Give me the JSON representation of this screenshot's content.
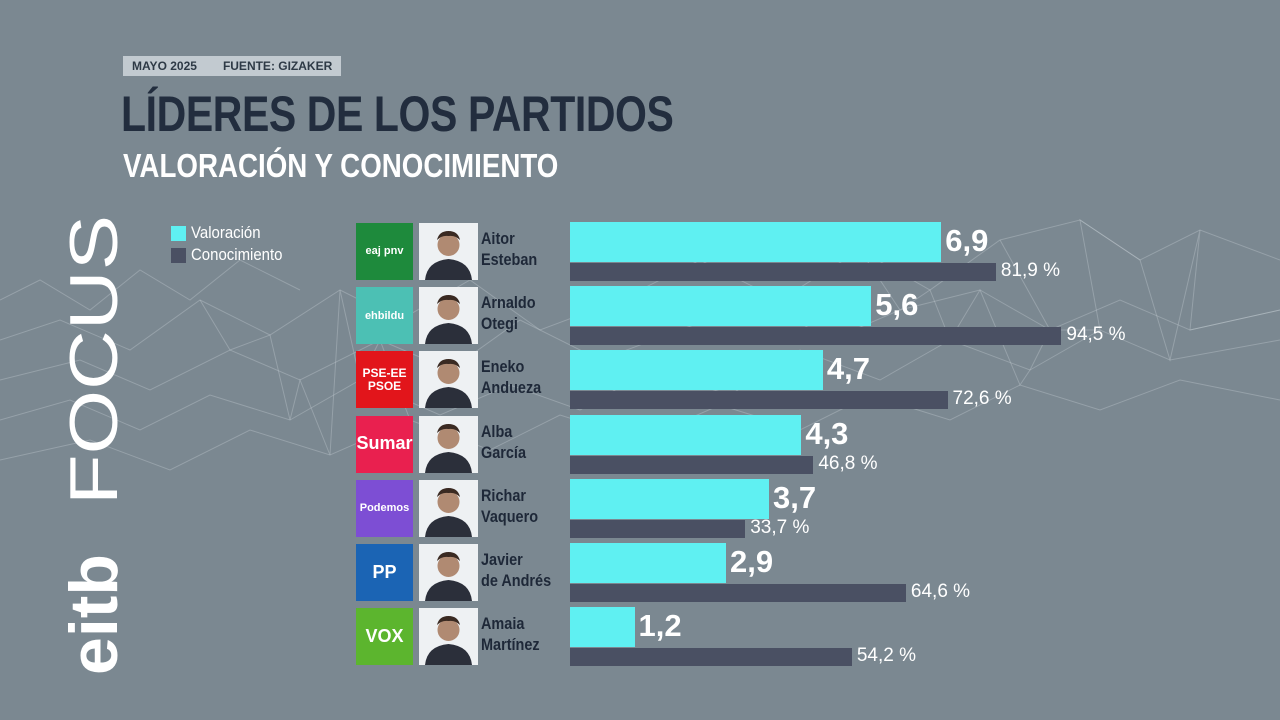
{
  "source": {
    "date": "MAYO 2025",
    "source": "FUENTE: GIZAKER"
  },
  "title": "LÍDERES DE LOS PARTIDOS",
  "subtitle": "VALORACIÓN Y CONOCIMIENTO",
  "brand": {
    "prefix": "eitb",
    "word": "FOCUS"
  },
  "colors": {
    "background": "#7b8891",
    "valoracion": "#5ff0f2",
    "conocimiento": "#4a5063",
    "title": "#222d3e"
  },
  "legend": [
    {
      "label": "Valoración",
      "color": "#5ff0f2"
    },
    {
      "label": "Conocimiento",
      "color": "#4a5063"
    }
  ],
  "leaders": [
    {
      "first": "Aitor",
      "last": "Esteban",
      "party": "eaj pnv",
      "logo_color": "#1e8a3c",
      "valoracion_label": "6,9",
      "conocimiento_label": "81,9 %"
    },
    {
      "first": "Arnaldo",
      "last": "Otegi",
      "party": "ehbildu",
      "logo_color": "#4cc0b4",
      "valoracion_label": "5,6",
      "conocimiento_label": "94,5 %"
    },
    {
      "first": "Eneko",
      "last": "Andueza",
      "party": "PSE-EE PSOE",
      "logo_color": "#e2151b",
      "valoracion_label": "4,7",
      "conocimiento_label": "72,6 %"
    },
    {
      "first": "Alba",
      "last": "García",
      "party": "Sumar",
      "logo_color": "#e9204f",
      "valoracion_label": "4,3",
      "conocimiento_label": "46,8 %"
    },
    {
      "first": "Richar",
      "last": "Vaquero",
      "party": "Podemos",
      "logo_color": "#7d4ed4",
      "valoracion_label": "3,7",
      "conocimiento_label": "33,7 %"
    },
    {
      "first": "Javier",
      "last": "de Andrés",
      "party": "PP",
      "logo_color": "#1b64b4",
      "valoracion_label": "2,9",
      "conocimiento_label": "64,6 %"
    },
    {
      "first": "Amaia",
      "last": "Martínez",
      "party": "VOX",
      "logo_color": "#5cb52e",
      "valoracion_label": "1,2",
      "conocimiento_label": "54,2 %"
    }
  ],
  "chart_data": {
    "type": "bar",
    "title": "LÍDERES DE LOS PARTIDOS",
    "subtitle": "VALORACIÓN Y CONOCIMIENTO",
    "orientation": "horizontal",
    "categories": [
      "Aitor Esteban",
      "Arnaldo Otegi",
      "Eneko Andueza",
      "Alba García",
      "Richar Vaquero",
      "Javier de Andrés",
      "Amaia Martínez"
    ],
    "series": [
      {
        "name": "Valoración",
        "values": [
          6.9,
          5.6,
          4.7,
          4.3,
          3.7,
          2.9,
          1.2
        ],
        "color": "#5ff0f2",
        "range": [
          0,
          10
        ]
      },
      {
        "name": "Conocimiento",
        "values": [
          81.9,
          94.5,
          72.6,
          46.8,
          33.7,
          64.6,
          54.2
        ],
        "color": "#4a5063",
        "range": [
          0,
          100
        ]
      }
    ],
    "legend": "top-left",
    "grid": false
  }
}
